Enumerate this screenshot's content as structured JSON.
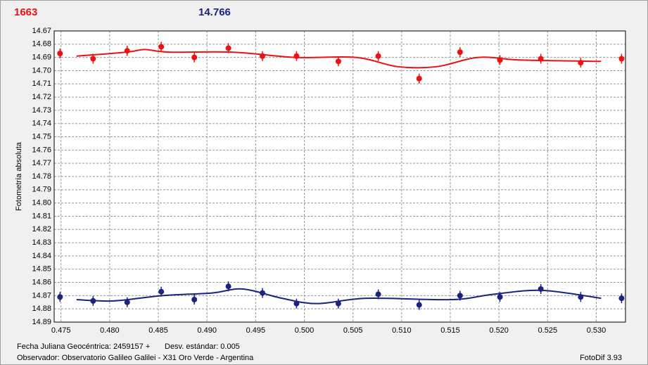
{
  "chart_data": {
    "type": "scatter",
    "title": "1663",
    "title_color": "#ee1111",
    "subtitle": "14.766",
    "subtitle_color": "#1a237e",
    "y_label": "Fotometría absoluta",
    "x_label": "Fecha Juliana Geocéntrica: 2459157 +",
    "std_text": "Desv. estándar: 0.005",
    "observer": "Observador: Observatorio Galileo Galilei - X31 Oro Verde - Argentina",
    "software": "FotoDif 3.93",
    "xlim": [
      0.4743,
      0.533
    ],
    "xticks": [
      0.475,
      {
        "value": 0.48,
        "label": "0.480"
      },
      0.485,
      {
        "value": 0.49,
        "label": "0.490"
      },
      0.495,
      {
        "value": 0.5,
        "label": "0.500"
      },
      0.505,
      {
        "value": 0.51,
        "label": "0.510"
      },
      0.515,
      {
        "value": 0.52,
        "label": "0.520"
      },
      0.525,
      {
        "value": 0.53,
        "label": "0.530"
      }
    ],
    "ylim": [
      14.67,
      14.89
    ],
    "y_inverted": true,
    "yticks": [
      14.67,
      14.68,
      14.69,
      {
        "value": 14.7,
        "label": "14.70"
      },
      14.71,
      14.72,
      14.73,
      14.74,
      14.75,
      14.76,
      14.77,
      14.78,
      14.79,
      {
        "value": 14.8,
        "label": "14.80"
      },
      14.81,
      14.82,
      14.83,
      14.84,
      14.85,
      14.86,
      14.87,
      14.88,
      14.89
    ],
    "grid": true,
    "series": [
      {
        "color": "#ee1111",
        "x": [
          0.4749,
          0.4783,
          0.4818,
          0.4853,
          0.4887,
          0.4922,
          0.4957,
          0.4992,
          0.5035,
          0.5076,
          0.5118,
          0.516,
          0.5201,
          0.5243,
          0.5284,
          0.5326
        ],
        "values": [
          14.687,
          14.691,
          14.685,
          14.682,
          14.69,
          14.683,
          14.689,
          14.689,
          14.693,
          14.689,
          14.706,
          14.686,
          14.692,
          14.691,
          14.694,
          14.691
        ],
        "fit_x": [
          0.4766,
          0.4818,
          0.4836,
          0.4861,
          0.4926,
          0.4991,
          0.5053,
          0.5096,
          0.5136,
          0.5179,
          0.5223,
          0.5305
        ],
        "fit_values": [
          14.689,
          14.686,
          14.684,
          14.686,
          14.686,
          14.69,
          14.69,
          14.697,
          14.697,
          14.69,
          14.692,
          14.693
        ]
      },
      {
        "color": "#1a237e",
        "x": [
          0.4749,
          0.4783,
          0.4818,
          0.4853,
          0.4887,
          0.4922,
          0.4957,
          0.4992,
          0.5035,
          0.5076,
          0.5118,
          0.516,
          0.5201,
          0.5243,
          0.5284,
          0.5326
        ],
        "values": [
          14.871,
          14.874,
          14.875,
          14.867,
          14.873,
          14.863,
          14.868,
          14.876,
          14.876,
          14.869,
          14.877,
          14.87,
          14.871,
          14.865,
          14.871,
          14.872
        ],
        "fit_x": [
          0.4766,
          0.4804,
          0.4854,
          0.4905,
          0.4937,
          0.4977,
          0.5013,
          0.5064,
          0.5151,
          0.5194,
          0.5244,
          0.5305
        ],
        "fit_values": [
          14.873,
          14.874,
          14.87,
          14.868,
          14.865,
          14.872,
          14.876,
          14.872,
          14.873,
          14.869,
          14.866,
          14.872
        ]
      }
    ]
  }
}
